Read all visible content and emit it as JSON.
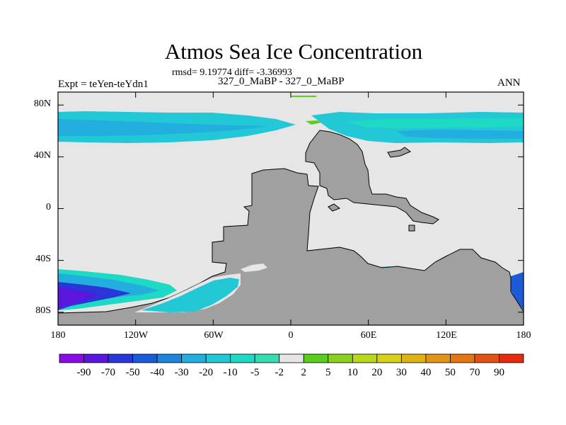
{
  "title": "Atmos Sea Ice Concentration",
  "stats": "rmsd= 9.19774 diff= -3.36993",
  "expt_label": "Expt = teYen-teYdn1",
  "comparison": "327_0_MaBP - 327_0_MaBP",
  "season": "ANN",
  "y_axis": {
    "labels": [
      "80N",
      "40N",
      "0",
      "40S",
      "80S"
    ],
    "values": [
      80,
      40,
      0,
      -40,
      -80
    ],
    "range": [
      -90,
      90
    ]
  },
  "x_axis": {
    "labels": [
      "180",
      "120W",
      "60W",
      "0",
      "60E",
      "120E",
      "180"
    ],
    "values": [
      -180,
      -120,
      -60,
      0,
      60,
      120,
      180
    ],
    "range": [
      -180,
      180
    ]
  },
  "colorbar": {
    "labels": [
      "-90",
      "-70",
      "-50",
      "-40",
      "-30",
      "-20",
      "-10",
      "-5",
      "-2",
      "2",
      "5",
      "10",
      "20",
      "30",
      "40",
      "50",
      "70",
      "90"
    ],
    "colors": [
      "#8a0be6",
      "#5a16dc",
      "#2a37d8",
      "#1b5bd8",
      "#1f86de",
      "#23aee0",
      "#22c8d6",
      "#1ed9c4",
      "#34deb0",
      "#e6e6e6",
      "#5bcd1f",
      "#8ad21e",
      "#b9d81c",
      "#d6d11a",
      "#e1b216",
      "#e39415",
      "#e47614",
      "#e45213",
      "#e52a10"
    ]
  },
  "colors": {
    "land": "#a0a0a0",
    "no_change": "#e6e6e6"
  }
}
